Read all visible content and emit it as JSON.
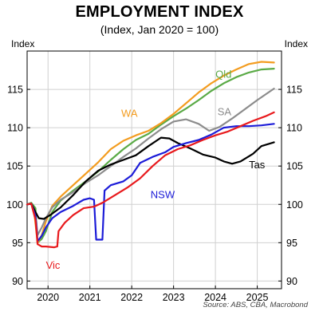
{
  "chart_data": {
    "type": "line",
    "title": "EMPLOYMENT INDEX",
    "subtitle": "(Index, Jan 2020 = 100)",
    "ylabel_left": "Index",
    "ylabel_right": "Index",
    "source": "Source: ABS, CBA, Macrobond",
    "ylim": [
      89,
      120
    ],
    "xlim": [
      2019.5,
      2025.58
    ],
    "yticks": [
      90,
      95,
      100,
      105,
      110,
      115
    ],
    "xticks": [
      {
        "label": "2020",
        "x": 2020.0
      },
      {
        "label": "2021",
        "x": 2021.0
      },
      {
        "label": "2022",
        "x": 2022.0
      },
      {
        "label": "2023",
        "x": 2023.0
      },
      {
        "label": "2024",
        "x": 2024.0
      },
      {
        "label": "2025",
        "x": 2025.0
      }
    ],
    "grid": true,
    "series": [
      {
        "name": "Qld",
        "color": "#5aaa46",
        "points": [
          [
            2019.5,
            100
          ],
          [
            2019.6,
            100.2
          ],
          [
            2019.7,
            99.5
          ],
          [
            2019.75,
            95
          ],
          [
            2019.85,
            95.5
          ],
          [
            2019.95,
            96.5
          ],
          [
            2020.1,
            99
          ],
          [
            2020.3,
            100.5
          ],
          [
            2020.6,
            101.8
          ],
          [
            2020.9,
            103
          ],
          [
            2021.2,
            104.3
          ],
          [
            2021.5,
            105.8
          ],
          [
            2021.8,
            107.2
          ],
          [
            2022.1,
            108.4
          ],
          [
            2022.4,
            109.2
          ],
          [
            2022.7,
            110.4
          ],
          [
            2023.0,
            111.5
          ],
          [
            2023.3,
            112.5
          ],
          [
            2023.6,
            113.6
          ],
          [
            2023.9,
            114.8
          ],
          [
            2024.2,
            115.8
          ],
          [
            2024.5,
            116.6
          ],
          [
            2024.8,
            117.2
          ],
          [
            2025.1,
            117.6
          ],
          [
            2025.4,
            117.7
          ]
        ]
      },
      {
        "name": "WA",
        "color": "#f39c1f",
        "points": [
          [
            2019.5,
            100
          ],
          [
            2019.6,
            100.1
          ],
          [
            2019.68,
            98.5
          ],
          [
            2019.75,
            95
          ],
          [
            2019.85,
            96
          ],
          [
            2019.95,
            97.8
          ],
          [
            2020.1,
            99.8
          ],
          [
            2020.3,
            101
          ],
          [
            2020.6,
            102.5
          ],
          [
            2020.9,
            104
          ],
          [
            2021.2,
            105.5
          ],
          [
            2021.5,
            107.2
          ],
          [
            2021.8,
            108.3
          ],
          [
            2022.1,
            109
          ],
          [
            2022.4,
            109.6
          ],
          [
            2022.7,
            110.6
          ],
          [
            2023.0,
            111.8
          ],
          [
            2023.3,
            113.2
          ],
          [
            2023.6,
            114.6
          ],
          [
            2023.9,
            115.8
          ],
          [
            2024.2,
            116.8
          ],
          [
            2024.5,
            117.6
          ],
          [
            2024.8,
            118.3
          ],
          [
            2025.1,
            118.6
          ],
          [
            2025.4,
            118.5
          ]
        ]
      },
      {
        "name": "SA",
        "color": "#8c8c8c",
        "points": [
          [
            2019.5,
            100
          ],
          [
            2019.6,
            100.1
          ],
          [
            2019.7,
            98.8
          ],
          [
            2019.75,
            96
          ],
          [
            2019.85,
            97
          ],
          [
            2019.95,
            98.2
          ],
          [
            2020.1,
            99.6
          ],
          [
            2020.3,
            100.6
          ],
          [
            2020.6,
            101.6
          ],
          [
            2020.9,
            102.8
          ],
          [
            2021.2,
            103.8
          ],
          [
            2021.5,
            105
          ],
          [
            2021.8,
            106.2
          ],
          [
            2022.1,
            107.3
          ],
          [
            2022.4,
            108.6
          ],
          [
            2022.7,
            109.8
          ],
          [
            2023.0,
            110.8
          ],
          [
            2023.3,
            111.1
          ],
          [
            2023.6,
            110.5
          ],
          [
            2023.85,
            109.6
          ],
          [
            2024.1,
            110.1
          ],
          [
            2024.4,
            111.2
          ],
          [
            2024.7,
            112.4
          ],
          [
            2025.0,
            113.6
          ],
          [
            2025.4,
            115.1
          ]
        ]
      },
      {
        "name": "Tas",
        "color": "#000000",
        "points": [
          [
            2019.5,
            100
          ],
          [
            2019.6,
            100.1
          ],
          [
            2019.7,
            99
          ],
          [
            2019.78,
            98.2
          ],
          [
            2019.9,
            98.1
          ],
          [
            2020.05,
            98.6
          ],
          [
            2020.3,
            99.6
          ],
          [
            2020.6,
            101.2
          ],
          [
            2020.9,
            103
          ],
          [
            2021.2,
            104.4
          ],
          [
            2021.5,
            105.2
          ],
          [
            2021.8,
            105.8
          ],
          [
            2022.1,
            106.4
          ],
          [
            2022.4,
            107.6
          ],
          [
            2022.7,
            108.7
          ],
          [
            2022.9,
            108.6
          ],
          [
            2023.1,
            108
          ],
          [
            2023.4,
            107.3
          ],
          [
            2023.7,
            106.5
          ],
          [
            2024.0,
            106.1
          ],
          [
            2024.2,
            105.6
          ],
          [
            2024.4,
            105.3
          ],
          [
            2024.6,
            105.6
          ],
          [
            2024.9,
            106.6
          ],
          [
            2025.1,
            107.6
          ],
          [
            2025.4,
            108.1
          ]
        ]
      },
      {
        "name": "NSW",
        "color": "#1c1cd8",
        "points": [
          [
            2019.5,
            100
          ],
          [
            2019.6,
            100.1
          ],
          [
            2019.7,
            98.5
          ],
          [
            2019.75,
            95.2
          ],
          [
            2019.85,
            95.9
          ],
          [
            2019.95,
            97
          ],
          [
            2020.1,
            98.2
          ],
          [
            2020.3,
            99
          ],
          [
            2020.6,
            99.8
          ],
          [
            2020.85,
            100.6
          ],
          [
            2021.0,
            100.8
          ],
          [
            2021.1,
            100.6
          ],
          [
            2021.15,
            95.4
          ],
          [
            2021.3,
            95.4
          ],
          [
            2021.35,
            101.8
          ],
          [
            2021.5,
            102.5
          ],
          [
            2021.8,
            103
          ],
          [
            2022.0,
            103.8
          ],
          [
            2022.2,
            105.4
          ],
          [
            2022.5,
            106.2
          ],
          [
            2022.8,
            106.8
          ],
          [
            2023.0,
            107.5
          ],
          [
            2023.3,
            108
          ],
          [
            2023.6,
            108.4
          ],
          [
            2023.9,
            109.1
          ],
          [
            2024.2,
            110
          ],
          [
            2024.5,
            110.2
          ],
          [
            2024.8,
            110.2
          ],
          [
            2025.1,
            110.3
          ],
          [
            2025.4,
            110.5
          ]
        ]
      },
      {
        "name": "Vic",
        "color": "#e8191c",
        "points": [
          [
            2019.5,
            100
          ],
          [
            2019.6,
            100.1
          ],
          [
            2019.7,
            98
          ],
          [
            2019.75,
            94.8
          ],
          [
            2019.85,
            94.5
          ],
          [
            2019.95,
            94.5
          ],
          [
            2020.15,
            94.4
          ],
          [
            2020.22,
            94.5
          ],
          [
            2020.25,
            96.5
          ],
          [
            2020.4,
            97.6
          ],
          [
            2020.6,
            98.6
          ],
          [
            2020.85,
            99.5
          ],
          [
            2021.1,
            99.7
          ],
          [
            2021.3,
            100.2
          ],
          [
            2021.6,
            101.2
          ],
          [
            2021.9,
            102.2
          ],
          [
            2022.2,
            103.4
          ],
          [
            2022.5,
            105
          ],
          [
            2022.8,
            106.4
          ],
          [
            2023.1,
            107.2
          ],
          [
            2023.4,
            107.7
          ],
          [
            2023.7,
            108.4
          ],
          [
            2024.0,
            109
          ],
          [
            2024.3,
            109.5
          ],
          [
            2024.6,
            110.2
          ],
          [
            2024.9,
            110.9
          ],
          [
            2025.2,
            111.5
          ],
          [
            2025.4,
            112
          ]
        ]
      }
    ],
    "labels": [
      {
        "text": "Qld",
        "x": 2024.0,
        "y": 116.5,
        "color": "#5aaa46"
      },
      {
        "text": "WA",
        "x": 2021.75,
        "y": 111.4,
        "color": "#f39c1f"
      },
      {
        "text": "SA",
        "x": 2024.05,
        "y": 111.6,
        "color": "#8c8c8c"
      },
      {
        "text": "Tas",
        "x": 2024.8,
        "y": 104.7,
        "color": "#000000"
      },
      {
        "text": "NSW",
        "x": 2022.45,
        "y": 100.8,
        "color": "#1c1cd8"
      },
      {
        "text": "Vic",
        "x": 2019.95,
        "y": 91.6,
        "color": "#e8191c"
      }
    ]
  }
}
